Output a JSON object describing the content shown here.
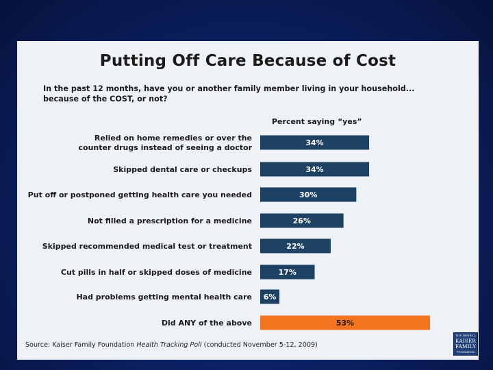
{
  "chart_data": {
    "type": "bar",
    "orientation": "horizontal",
    "title": "Putting Off Care Because of Cost",
    "subtitle_line1": "In the past 12 months, have you or another family member living in your household...",
    "subtitle_line2": "because of the COST, or not?",
    "column_header": "Percent saying “yes”",
    "xlim": [
      0,
      53
    ],
    "categories": [
      [
        "Relied on home remedies or over the",
        "counter drugs instead of seeing a doctor"
      ],
      [
        "Skipped dental care or checkups"
      ],
      [
        "Put off or postponed getting health care you needed"
      ],
      [
        "Not filled a prescription for a medicine"
      ],
      [
        "Skipped recommended medical test or treatment"
      ],
      [
        "Cut pills in half or skipped doses of medicine"
      ],
      [
        "Had problems getting mental health care"
      ],
      [
        "Did ANY of the above"
      ]
    ],
    "values": [
      34,
      34,
      30,
      26,
      22,
      17,
      6,
      53
    ],
    "value_labels": [
      "34%",
      "34%",
      "30%",
      "26%",
      "22%",
      "17%",
      "6%",
      "53%"
    ],
    "highlight_index": 7
  },
  "colors": {
    "bar": "#1e4263",
    "highlight": "#f4731e",
    "label_light": "#ffffff",
    "label_dark": "#1b1b1b"
  },
  "source": {
    "prefix": "Source: Kaiser Family Foundation ",
    "poll": "Health Tracking Poll",
    "suffix": " (conducted November 5-12, 2009)"
  },
  "logo": {
    "line1": "THE HENRY J.",
    "line2": "KAISER",
    "line3": "FAMILY",
    "line4": "FOUNDATION"
  }
}
